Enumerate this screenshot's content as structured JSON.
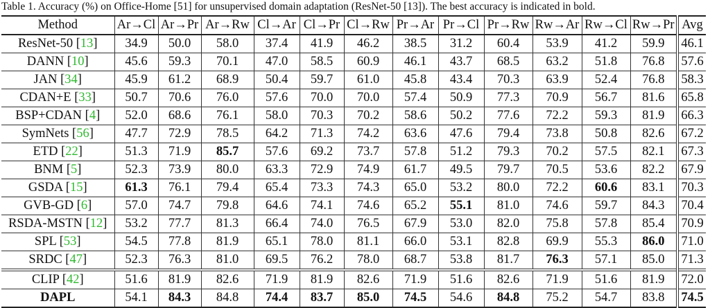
{
  "caption": "Table 1. Accuracy (%) on Office-Home [51] for unsupervised domain adaptation (ResNet-50 [13]). The best accuracy is indicated in bold.",
  "table": {
    "header": [
      "Method",
      "Ar→Cl",
      "Ar→Pr",
      "Ar→Rw",
      "Cl→Ar",
      "Cl→Pr",
      "Cl→Rw",
      "Pr→Ar",
      "Pr→Cl",
      "Pr→Rw",
      "Rw→Ar",
      "Rw→Cl",
      "Rw→Pr",
      "Avg"
    ],
    "rows": [
      {
        "method": [
          "ResNet-50 [",
          "13",
          "]"
        ],
        "values": [
          "34.9",
          "50.0",
          "58.0",
          "37.4",
          "41.9",
          "46.2",
          "38.5",
          "31.2",
          "60.4",
          "53.9",
          "41.2",
          "59.9",
          "46.1"
        ],
        "bold": []
      },
      {
        "method": [
          "DANN [",
          "10",
          "]"
        ],
        "values": [
          "45.6",
          "59.3",
          "70.1",
          "47.0",
          "58.5",
          "60.9",
          "46.1",
          "43.7",
          "68.5",
          "63.2",
          "51.8",
          "76.8",
          "57.6"
        ],
        "bold": []
      },
      {
        "method": [
          "JAN [",
          "34",
          "]"
        ],
        "values": [
          "45.9",
          "61.2",
          "68.9",
          "50.4",
          "59.7",
          "61.0",
          "45.8",
          "43.4",
          "70.3",
          "63.9",
          "52.4",
          "76.8",
          "58.3"
        ],
        "bold": []
      },
      {
        "method": [
          "CDAN+E [",
          "33",
          "]"
        ],
        "values": [
          "50.7",
          "70.6",
          "76.0",
          "57.6",
          "70.0",
          "70.0",
          "57.4",
          "50.9",
          "77.3",
          "70.9",
          "56.7",
          "81.6",
          "65.8"
        ],
        "bold": []
      },
      {
        "method": [
          "BSP+CDAN [",
          "4",
          "]"
        ],
        "values": [
          "52.0",
          "68.6",
          "76.1",
          "58.0",
          "70.3",
          "70.2",
          "58.6",
          "50.2",
          "77.6",
          "72.2",
          "59.3",
          "81.9",
          "66.3"
        ],
        "bold": []
      },
      {
        "method": [
          "SymNets [",
          "56",
          "]"
        ],
        "values": [
          "47.7",
          "72.9",
          "78.5",
          "64.2",
          "71.3",
          "74.2",
          "63.6",
          "47.6",
          "79.4",
          "73.8",
          "50.8",
          "82.6",
          "67.2"
        ],
        "bold": []
      },
      {
        "method": [
          "ETD [",
          "22",
          "]"
        ],
        "values": [
          "51.3",
          "71.9",
          "85.7",
          "57.6",
          "69.2",
          "73.7",
          "57.8",
          "51.2",
          "79.3",
          "70.2",
          "57.5",
          "82.1",
          "67.3"
        ],
        "bold": [
          2
        ]
      },
      {
        "method": [
          "BNM [",
          "5",
          "]"
        ],
        "values": [
          "52.3",
          "73.9",
          "80.0",
          "63.3",
          "72.9",
          "74.9",
          "61.7",
          "49.5",
          "79.7",
          "70.5",
          "53.6",
          "82.2",
          "67.9"
        ],
        "bold": []
      },
      {
        "method": [
          "GSDA [",
          "15",
          "]"
        ],
        "values": [
          "61.3",
          "76.1",
          "79.4",
          "65.4",
          "73.3",
          "74.3",
          "65.0",
          "53.2",
          "80.0",
          "72.2",
          "60.6",
          "83.1",
          "70.3"
        ],
        "bold": [
          0,
          10
        ]
      },
      {
        "method": [
          "GVB-GD [",
          "6",
          "]"
        ],
        "values": [
          "57.0",
          "74.7",
          "79.8",
          "64.6",
          "74.1",
          "74.6",
          "65.2",
          "55.1",
          "81.0",
          "74.6",
          "59.7",
          "84.3",
          "70.4"
        ],
        "bold": [
          7
        ]
      },
      {
        "method": [
          "RSDA-MSTN [",
          "12",
          "]"
        ],
        "values": [
          "53.2",
          "77.7",
          "81.3",
          "66.4",
          "74.0",
          "76.5",
          "67.9",
          "53.0",
          "82.0",
          "75.8",
          "57.8",
          "85.4",
          "70.9"
        ],
        "bold": []
      },
      {
        "method": [
          "SPL [",
          "53",
          "]"
        ],
        "values": [
          "54.5",
          "77.8",
          "81.9",
          "65.1",
          "78.0",
          "81.1",
          "66.0",
          "53.1",
          "82.8",
          "69.9",
          "55.3",
          "86.0",
          "71.0"
        ],
        "bold": [
          11
        ]
      },
      {
        "method": [
          "SRDC [",
          "47",
          "]"
        ],
        "values": [
          "52.3",
          "76.3",
          "81.0",
          "69.5",
          "76.2",
          "78.0",
          "68.7",
          "53.8",
          "81.7",
          "76.3",
          "57.1",
          "85.0",
          "71.3"
        ],
        "bold": [
          9
        ]
      },
      {
        "method": [
          "CLIP [",
          "42",
          "]"
        ],
        "values": [
          "51.6",
          "81.9",
          "82.6",
          "71.9",
          "81.9",
          "82.6",
          "71.9",
          "51.6",
          "82.6",
          "71.9",
          "51.6",
          "81.9",
          "72.0"
        ],
        "bold": [],
        "separator": true
      },
      {
        "method": [
          "DAPL"
        ],
        "values": [
          "54.1",
          "84.3",
          "84.8",
          "74.4",
          "83.7",
          "85.0",
          "74.5",
          "54.6",
          "84.8",
          "75.2",
          "54.7",
          "83.8",
          "74.5"
        ],
        "bold": [
          1,
          3,
          4,
          5,
          6,
          8,
          12
        ],
        "bold_method": true
      }
    ]
  }
}
